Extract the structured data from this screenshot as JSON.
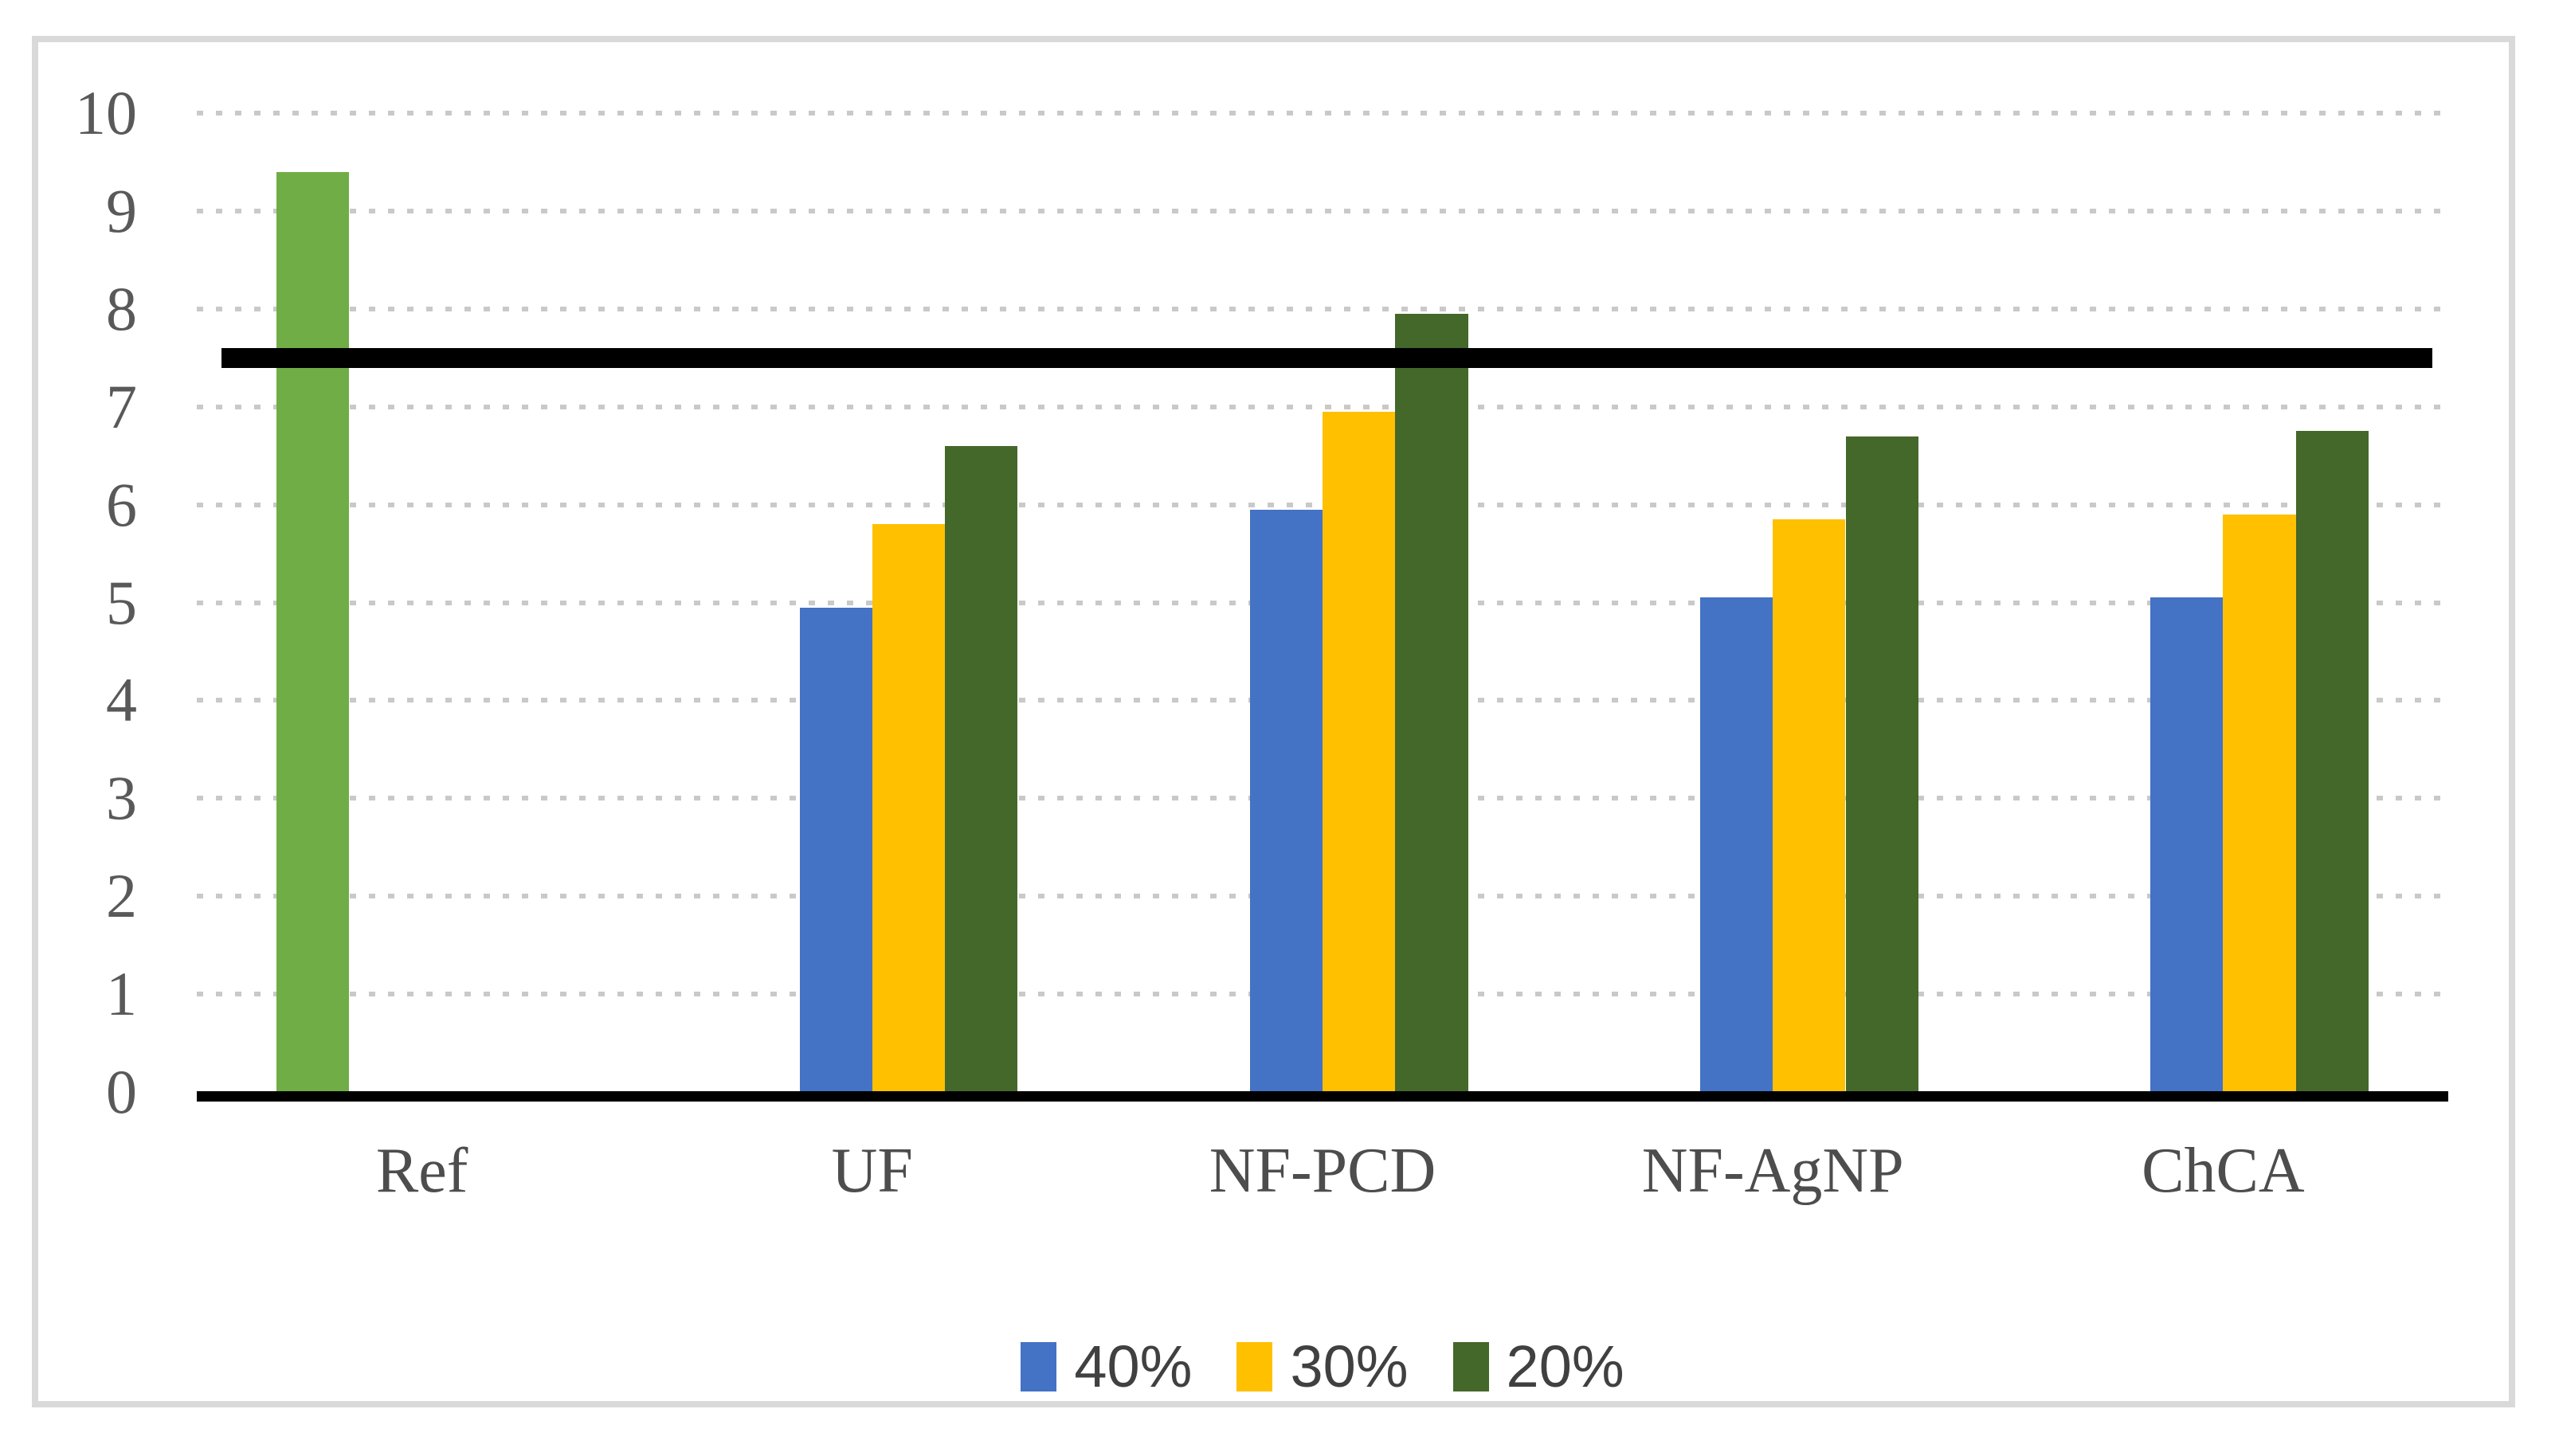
{
  "chart_data": {
    "type": "bar",
    "title": "",
    "xlabel": "",
    "ylabel": "",
    "categories": [
      "Ref",
      "UF",
      "NF-PCD",
      "NF-AgNP",
      "ChCA"
    ],
    "series": [
      {
        "name": "Ref",
        "color": "#70AD47",
        "in_legend": false,
        "values": [
          9.4,
          null,
          null,
          null,
          null
        ]
      },
      {
        "name": "40%",
        "color": "#4472C4",
        "in_legend": true,
        "values": [
          null,
          4.95,
          5.95,
          5.05,
          5.05
        ]
      },
      {
        "name": "30%",
        "color": "#FFC000",
        "in_legend": true,
        "values": [
          null,
          5.8,
          6.95,
          5.85,
          5.9
        ]
      },
      {
        "name": "20%",
        "color": "#44672A",
        "in_legend": true,
        "values": [
          null,
          6.6,
          7.95,
          6.7,
          6.75
        ]
      }
    ],
    "threshold_line": {
      "value": 7.5,
      "color": "#000000"
    },
    "y_axis": {
      "min": 0,
      "max": 10,
      "step": 1,
      "tick_labels": [
        "0",
        "1",
        "2",
        "3",
        "4",
        "5",
        "6",
        "7",
        "8",
        "9",
        "10"
      ]
    },
    "legend": {
      "position": "bottom",
      "labels": [
        "40%",
        "30%",
        "20%"
      ]
    },
    "grid": "dotted-horizontal",
    "gridline_color": "#C9C9C9",
    "axis_line_color": "#000000",
    "frame_border_color": "#D9D9D9"
  }
}
